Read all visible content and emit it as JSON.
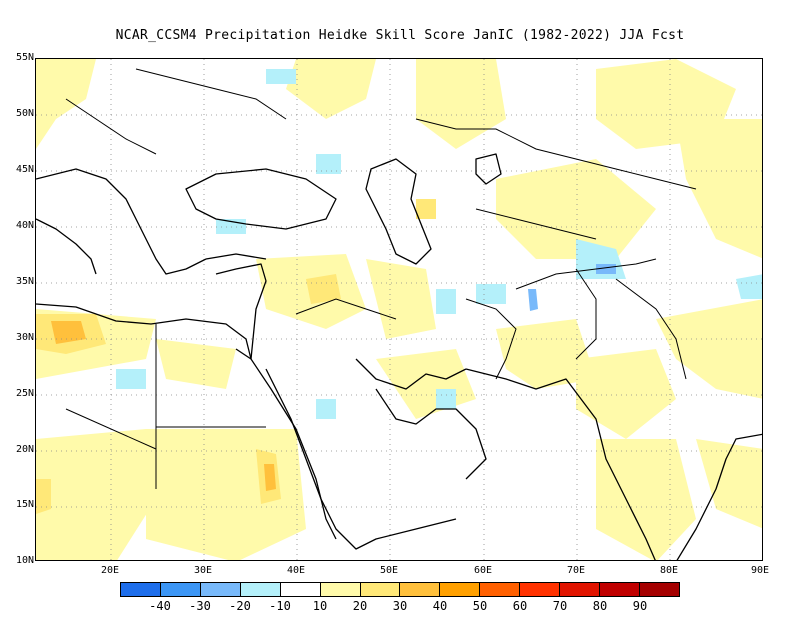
{
  "title": "NCAR_CCSM4  Precipitation Heidke Skill Score JanIC (1982-2022) JJA Fcst",
  "map": {
    "lon_range": [
      12,
      90
    ],
    "lat_range": [
      10,
      55
    ],
    "y_axis_labels": [
      "55N",
      "50N",
      "45N",
      "40N",
      "35N",
      "30N",
      "25N",
      "20N",
      "15N",
      "10N"
    ],
    "x_axis_labels": [
      "20E",
      "30E",
      "40E",
      "50E",
      "60E",
      "70E",
      "80E",
      "90E"
    ],
    "grid": "dotted",
    "projection": "lat-lon"
  },
  "colorbar": {
    "labels": [
      "-40",
      "-30",
      "-20",
      "-10",
      "10",
      "20",
      "30",
      "40",
      "50",
      "60",
      "70",
      "80",
      "90"
    ],
    "colors": [
      "#1e6eeb",
      "#3c96f5",
      "#78b9fa",
      "#b4f0fa",
      "#ffffff",
      "#fffaaa",
      "#ffe878",
      "#ffc03c",
      "#ffa000",
      "#ff6000",
      "#ff3200",
      "#e11400",
      "#c00000",
      "#a50000"
    ]
  }
}
